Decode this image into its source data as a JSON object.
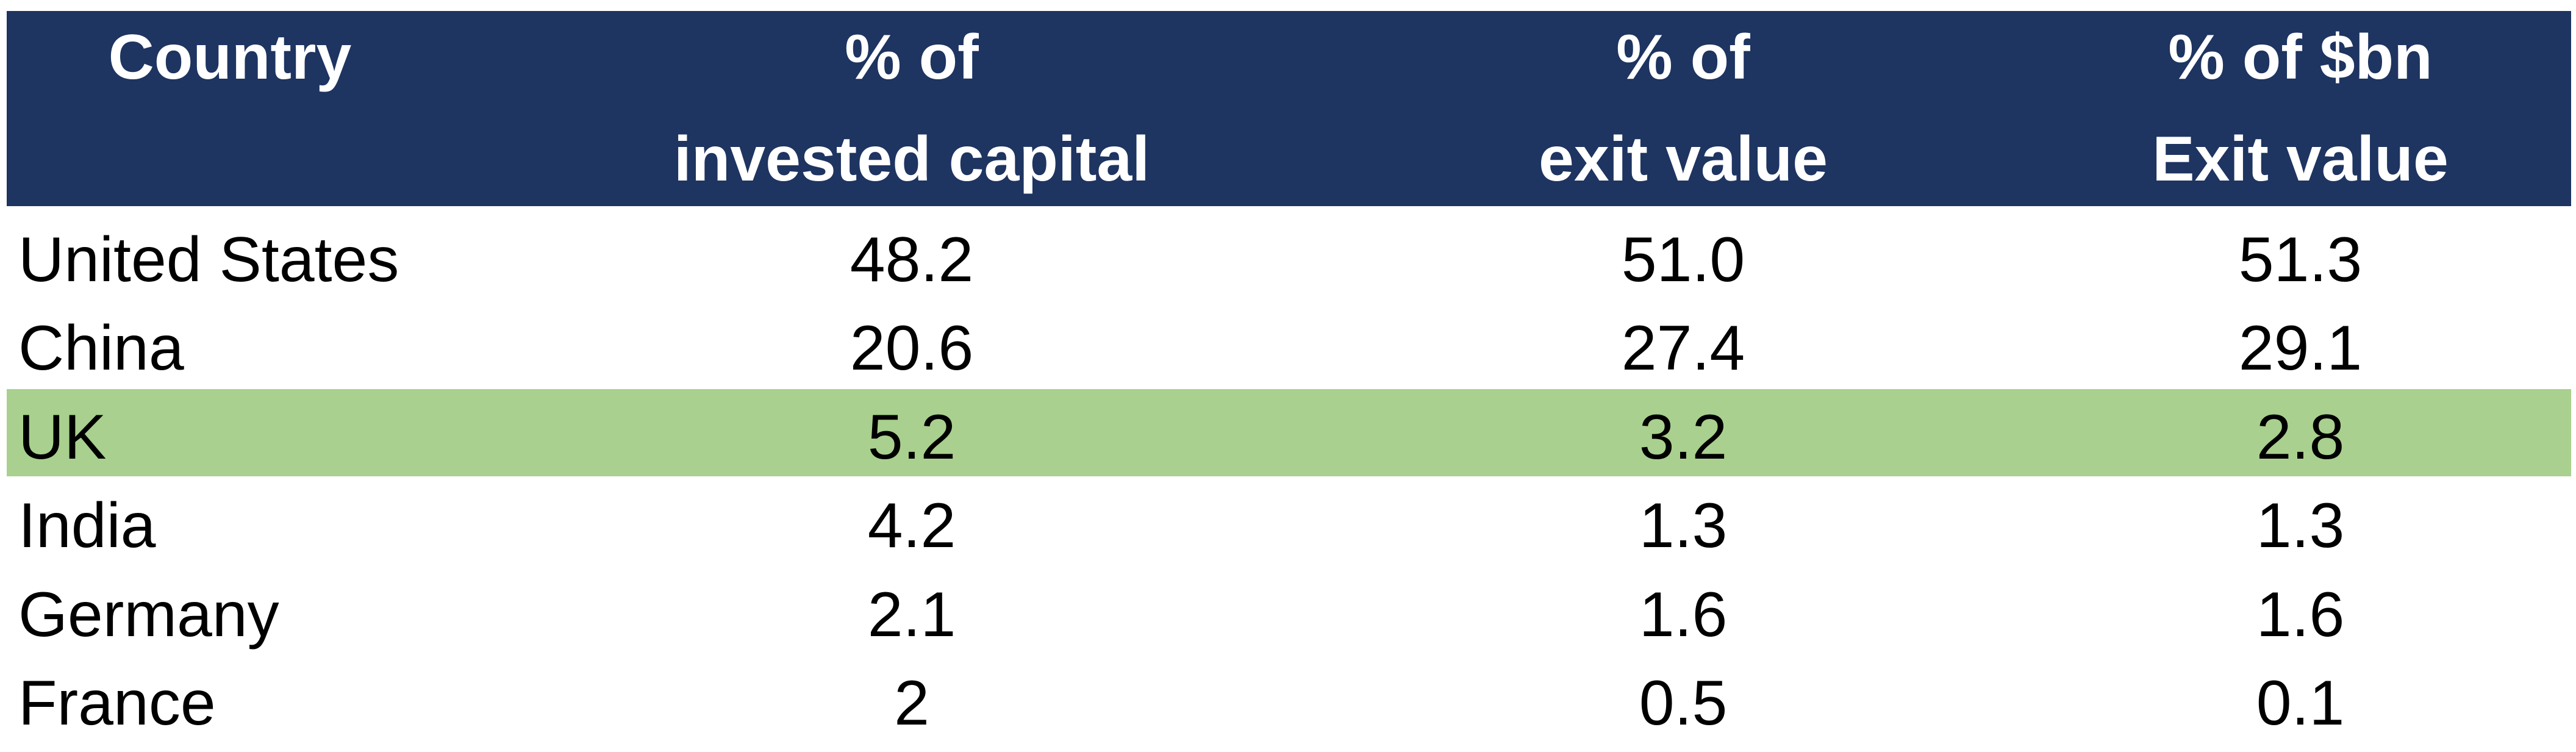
{
  "table": {
    "header": [
      [
        "Country"
      ],
      [
        "% of",
        "invested capital"
      ],
      [
        "% of",
        "exit value"
      ],
      [
        "% of $bn",
        "Exit value"
      ]
    ],
    "rows": [
      [
        "United States",
        "48.2",
        "51.0",
        "51.3"
      ],
      [
        "China",
        "20.6",
        "27.4",
        "29.1"
      ],
      [
        "UK",
        "5.2",
        "3.2",
        "2.8"
      ],
      [
        "India",
        "4.2",
        "1.3",
        "1.3"
      ],
      [
        "Germany",
        "2.1",
        "1.6",
        "1.6"
      ],
      [
        "France",
        "2",
        "0.5",
        "0.1"
      ]
    ]
  }
}
